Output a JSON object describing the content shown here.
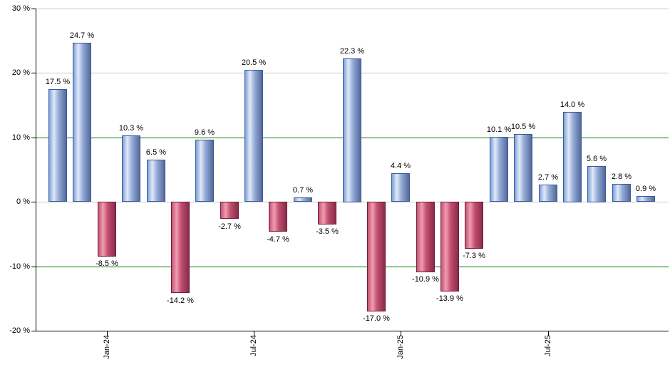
{
  "chart_data": {
    "type": "bar",
    "title": "",
    "xlabel": "",
    "ylabel": "",
    "unit": "%",
    "ylim": [
      -20,
      30
    ],
    "values": [
      17.5,
      24.7,
      -8.5,
      10.3,
      6.5,
      -14.2,
      9.6,
      -2.7,
      20.5,
      -4.7,
      0.7,
      -3.5,
      22.3,
      -17.0,
      4.4,
      -10.9,
      -13.9,
      -7.3,
      10.1,
      10.5,
      2.7,
      14.0,
      5.6,
      2.8,
      0.9
    ],
    "value_labels": [
      "17.5 %",
      "24.7 %",
      "-8.5 %",
      "10.3 %",
      "6.5 %",
      "-14.2 %",
      "9.6 %",
      "-2.7 %",
      "20.5 %",
      "-4.7 %",
      "0.7 %",
      "-3.5 %",
      "22.3 %",
      "-17.0 %",
      "4.4 %",
      "-10.9 %",
      "-13.9 %",
      "-7.3 %",
      "10.1 %",
      "10.5 %",
      "2.7 %",
      "14.0 %",
      "5.6 %",
      "2.8 %",
      "0.9 %"
    ],
    "x_ticks": [
      {
        "index": 2,
        "label": "Jan-24"
      },
      {
        "index": 8,
        "label": "Jul-24"
      },
      {
        "index": 14,
        "label": "Jan-25"
      },
      {
        "index": 20,
        "label": "Jul-25"
      }
    ],
    "y_ticks": [
      {
        "value": 30,
        "label": "30 %"
      },
      {
        "value": 20,
        "label": "20 %"
      },
      {
        "value": 10,
        "label": "10 %"
      },
      {
        "value": 0,
        "label": "0 %"
      },
      {
        "value": -10,
        "label": "-10 %"
      },
      {
        "value": -20,
        "label": "-20 %"
      }
    ],
    "green_line_values": [
      10,
      -10
    ],
    "gray_grid_values": [
      30,
      20,
      0
    ],
    "legend": "none",
    "grid": "horizontal",
    "colors": {
      "positive_bar_gradient": [
        "#7ba1d8",
        "#e2e9f7",
        "#93abd6",
        "#54689a"
      ],
      "positive_bar_border": "#3a5a99",
      "negative_bar_gradient": [
        "#c35474",
        "#f19cb0",
        "#c24f70",
        "#8a2a4a"
      ],
      "negative_bar_border": "#6f1f3d",
      "threshold_line": "#008000",
      "gridline": "#c8c8c8",
      "axis": "#000000",
      "text": "#000000",
      "background": "#ffffff"
    }
  }
}
